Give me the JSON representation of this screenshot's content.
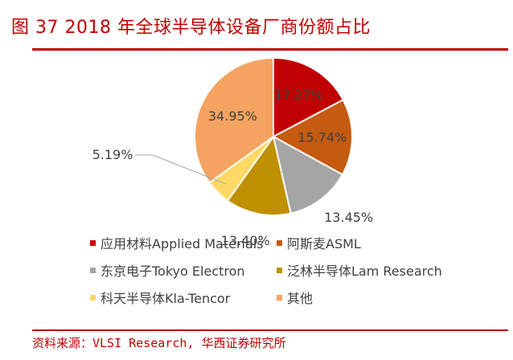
{
  "header": {
    "title": "图 37   2018 年全球半导体设备厂商份额占比"
  },
  "chart_data": {
    "type": "pie",
    "title": "",
    "categories": [
      "应用材料Applied Materials",
      "阿斯麦ASML",
      "东京电子Tokyo Electron",
      "泛林半导体Lam Research",
      "科天半导体Kla-Tencor",
      "其他"
    ],
    "values": [
      17.27,
      15.74,
      13.45,
      13.4,
      5.19,
      34.95
    ],
    "labels": [
      "17.27%",
      "15.74%",
      "13.45%",
      "13.40%",
      "5.19%",
      "34.95%"
    ],
    "colors": [
      "#c00000",
      "#c55a11",
      "#a5a5a5",
      "#bf9000",
      "#ffd966",
      "#f4a460"
    ],
    "legend_position": "bottom"
  },
  "footer": {
    "source": "资料来源：VLSI Research, 华西证券研究所"
  }
}
